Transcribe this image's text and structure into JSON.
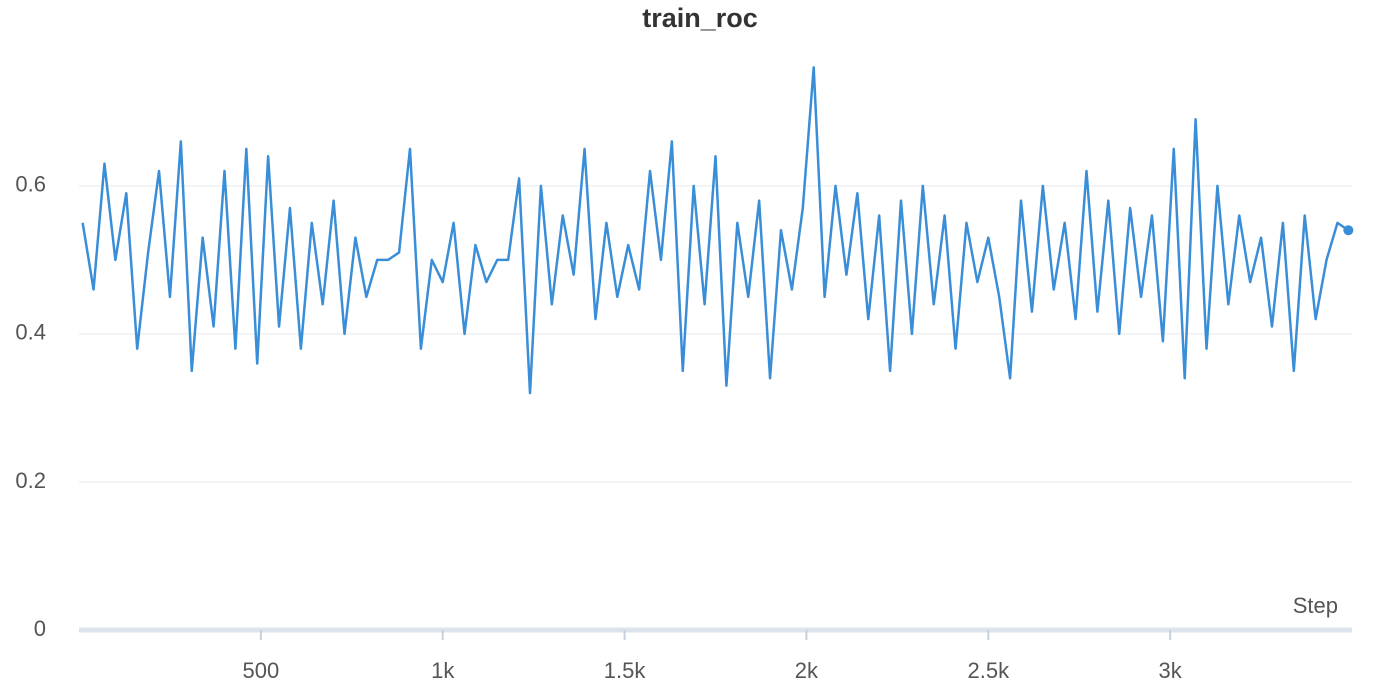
{
  "chart_data": {
    "type": "line",
    "title": "train_roc",
    "x_label": "Step",
    "x": [
      10,
      40,
      70,
      100,
      130,
      160,
      190,
      220,
      250,
      280,
      310,
      340,
      370,
      400,
      430,
      460,
      490,
      520,
      550,
      580,
      610,
      640,
      670,
      700,
      730,
      760,
      790,
      820,
      850,
      880,
      910,
      940,
      970,
      1000,
      1030,
      1060,
      1090,
      1120,
      1150,
      1180,
      1210,
      1240,
      1270,
      1300,
      1330,
      1360,
      1390,
      1420,
      1450,
      1480,
      1510,
      1540,
      1570,
      1600,
      1630,
      1660,
      1690,
      1720,
      1750,
      1780,
      1810,
      1840,
      1870,
      1900,
      1930,
      1960,
      1990,
      2020,
      2050,
      2080,
      2110,
      2140,
      2170,
      2200,
      2230,
      2260,
      2290,
      2320,
      2350,
      2380,
      2410,
      2440,
      2470,
      2500,
      2530,
      2560,
      2590,
      2620,
      2650,
      2680,
      2710,
      2740,
      2770,
      2800,
      2830,
      2860,
      2890,
      2920,
      2950,
      2980,
      3010,
      3040,
      3070,
      3100,
      3130,
      3160,
      3190,
      3220,
      3250,
      3280,
      3310,
      3340,
      3370,
      3400,
      3430,
      3460,
      3490
    ],
    "values": [
      0.55,
      0.46,
      0.63,
      0.5,
      0.59,
      0.38,
      0.51,
      0.62,
      0.45,
      0.66,
      0.35,
      0.53,
      0.41,
      0.62,
      0.38,
      0.65,
      0.36,
      0.64,
      0.41,
      0.57,
      0.38,
      0.55,
      0.44,
      0.58,
      0.4,
      0.53,
      0.45,
      0.5,
      0.5,
      0.51,
      0.65,
      0.38,
      0.5,
      0.47,
      0.55,
      0.4,
      0.52,
      0.47,
      0.5,
      0.5,
      0.61,
      0.32,
      0.6,
      0.44,
      0.56,
      0.48,
      0.65,
      0.42,
      0.55,
      0.45,
      0.52,
      0.46,
      0.62,
      0.5,
      0.66,
      0.35,
      0.6,
      0.44,
      0.64,
      0.33,
      0.55,
      0.45,
      0.58,
      0.34,
      0.54,
      0.46,
      0.57,
      0.76,
      0.45,
      0.6,
      0.48,
      0.59,
      0.42,
      0.56,
      0.35,
      0.58,
      0.4,
      0.6,
      0.44,
      0.56,
      0.38,
      0.55,
      0.47,
      0.53,
      0.45,
      0.34,
      0.58,
      0.43,
      0.6,
      0.46,
      0.55,
      0.42,
      0.62,
      0.43,
      0.58,
      0.4,
      0.57,
      0.45,
      0.56,
      0.39,
      0.65,
      0.34,
      0.69,
      0.38,
      0.6,
      0.44,
      0.56,
      0.47,
      0.53,
      0.41,
      0.55,
      0.35,
      0.56,
      0.42,
      0.5,
      0.55,
      0.54
    ],
    "color": "#3a8ed8",
    "xlim": [
      0,
      3500
    ],
    "ylim": [
      0,
      0.77
    ],
    "xticks": [
      500,
      {
        "value": 1000,
        "label": "1k"
      },
      {
        "value": 1500,
        "label": "1.5k"
      },
      {
        "value": 2000,
        "label": "2k"
      },
      {
        "value": 2500,
        "label": "2.5k"
      },
      {
        "value": 3000,
        "label": "3k"
      }
    ],
    "yticks": [
      0,
      0.2,
      0.4,
      0.6
    ],
    "grid": true
  }
}
